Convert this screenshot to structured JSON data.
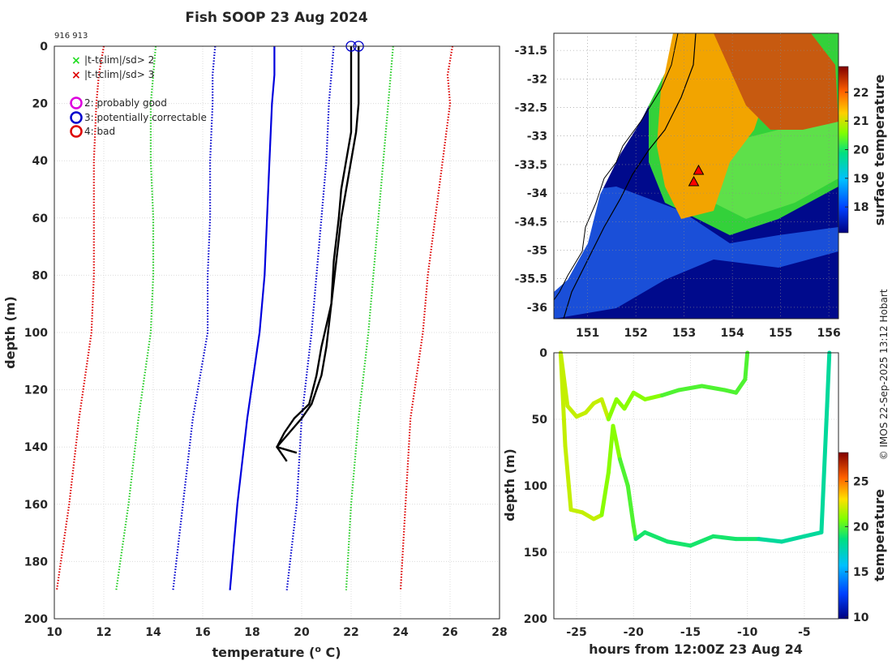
{
  "figure": {
    "title": "Fish SOOP 23 Aug 2024",
    "ids_label": "916 913",
    "credit": "© IMOS 22-Sep-2025 13:12 Hobart"
  },
  "chart_data": [
    {
      "type": "line",
      "name": "temperature-profile",
      "xlabel": "temperature (o C)",
      "ylabel": "depth (m)",
      "xlim": [
        10,
        28
      ],
      "ylim": [
        200,
        0
      ],
      "xticks": [
        10,
        12,
        14,
        16,
        18,
        20,
        22,
        24,
        26,
        28
      ],
      "yticks": [
        0,
        20,
        40,
        60,
        80,
        100,
        120,
        140,
        160,
        180,
        200
      ],
      "grid": true,
      "legend": [
        {
          "symbol": "x",
          "color": "#22dd22",
          "label": "|t-tclim|/sd> 2"
        },
        {
          "symbol": "x",
          "color": "#dd0000",
          "label": "|t-tclim|/sd> 3"
        },
        {
          "symbol": "o",
          "color": "#dd00dd",
          "label": "2: probably good"
        },
        {
          "symbol": "o",
          "color": "#0000cc",
          "label": "3: potentially correctable"
        },
        {
          "symbol": "o",
          "color": "#dd0000",
          "label": "4: bad"
        }
      ],
      "series": [
        {
          "name": "climatology-minus-3sd",
          "color": "#dd0000",
          "style": "dotted",
          "points": [
            [
              12.0,
              0
            ],
            [
              11.8,
              10
            ],
            [
              11.7,
              20
            ],
            [
              11.6,
              40
            ],
            [
              11.6,
              60
            ],
            [
              11.6,
              80
            ],
            [
              11.5,
              100
            ],
            [
              11.0,
              130
            ],
            [
              10.6,
              160
            ],
            [
              10.1,
              190
            ]
          ]
        },
        {
          "name": "climatology-minus-2sd",
          "color": "#22cc22",
          "style": "dotted",
          "points": [
            [
              14.1,
              0
            ],
            [
              14.0,
              10
            ],
            [
              13.9,
              20
            ],
            [
              13.9,
              40
            ],
            [
              14.0,
              60
            ],
            [
              14.0,
              80
            ],
            [
              13.9,
              100
            ],
            [
              13.4,
              130
            ],
            [
              13.0,
              160
            ],
            [
              12.5,
              190
            ]
          ]
        },
        {
          "name": "climatology-mean-minus-1sd",
          "color": "#0000cc",
          "style": "dotted",
          "points": [
            [
              16.5,
              0
            ],
            [
              16.4,
              10
            ],
            [
              16.4,
              20
            ],
            [
              16.3,
              40
            ],
            [
              16.3,
              60
            ],
            [
              16.2,
              80
            ],
            [
              16.2,
              100
            ],
            [
              15.6,
              130
            ],
            [
              15.2,
              160
            ],
            [
              14.8,
              190
            ]
          ]
        },
        {
          "name": "climatology-mean",
          "color": "#0000dd",
          "style": "solid",
          "points": [
            [
              18.9,
              0
            ],
            [
              18.9,
              10
            ],
            [
              18.8,
              20
            ],
            [
              18.7,
              40
            ],
            [
              18.6,
              60
            ],
            [
              18.5,
              80
            ],
            [
              18.3,
              100
            ],
            [
              17.8,
              130
            ],
            [
              17.4,
              160
            ],
            [
              17.1,
              190
            ]
          ]
        },
        {
          "name": "climatology-mean-plus-1sd",
          "color": "#0000cc",
          "style": "dotted",
          "points": [
            [
              21.3,
              0
            ],
            [
              21.2,
              10
            ],
            [
              21.1,
              20
            ],
            [
              21.0,
              40
            ],
            [
              20.8,
              60
            ],
            [
              20.6,
              80
            ],
            [
              20.4,
              100
            ],
            [
              20.0,
              130
            ],
            [
              19.8,
              160
            ],
            [
              19.4,
              190
            ]
          ]
        },
        {
          "name": "climatology-plus-2sd",
          "color": "#22cc22",
          "style": "dotted",
          "points": [
            [
              23.7,
              0
            ],
            [
              23.6,
              10
            ],
            [
              23.5,
              20
            ],
            [
              23.3,
              40
            ],
            [
              23.1,
              60
            ],
            [
              22.9,
              80
            ],
            [
              22.7,
              100
            ],
            [
              22.3,
              130
            ],
            [
              22.0,
              160
            ],
            [
              21.8,
              190
            ]
          ]
        },
        {
          "name": "climatology-plus-3sd",
          "color": "#dd0000",
          "style": "dotted",
          "points": [
            [
              26.1,
              0
            ],
            [
              25.9,
              10
            ],
            [
              26.0,
              20
            ],
            [
              25.7,
              40
            ],
            [
              25.4,
              60
            ],
            [
              25.1,
              80
            ],
            [
              24.9,
              100
            ],
            [
              24.4,
              130
            ],
            [
              24.2,
              160
            ],
            [
              24.0,
              190
            ]
          ]
        },
        {
          "name": "profile-916",
          "color": "#000000",
          "style": "solid",
          "points": [
            [
              22.0,
              0
            ],
            [
              22.0,
              10
            ],
            [
              22.0,
              20
            ],
            [
              22.0,
              30
            ],
            [
              21.8,
              40
            ],
            [
              21.6,
              50
            ],
            [
              21.5,
              60
            ],
            [
              21.3,
              75
            ],
            [
              21.2,
              90
            ],
            [
              20.8,
              105
            ],
            [
              20.6,
              115
            ],
            [
              20.3,
              125
            ],
            [
              19.7,
              130
            ],
            [
              19.3,
              135
            ],
            [
              19.0,
              140
            ],
            [
              19.4,
              145
            ]
          ]
        },
        {
          "name": "profile-913",
          "color": "#000000",
          "style": "solid",
          "points": [
            [
              22.3,
              0
            ],
            [
              22.3,
              10
            ],
            [
              22.3,
              20
            ],
            [
              22.2,
              30
            ],
            [
              22.0,
              40
            ],
            [
              21.8,
              50
            ],
            [
              21.6,
              60
            ],
            [
              21.4,
              75
            ],
            [
              21.2,
              90
            ],
            [
              21.0,
              105
            ],
            [
              20.8,
              115
            ],
            [
              20.4,
              125
            ],
            [
              20.0,
              130
            ],
            [
              19.5,
              135
            ],
            [
              19.0,
              140
            ],
            [
              19.8,
              142
            ]
          ]
        }
      ],
      "markers": [
        {
          "name": "profile-916-start",
          "color": "#0000cc",
          "shape": "circle",
          "x": 22.0,
          "y": 0
        },
        {
          "name": "profile-913-start",
          "color": "#0000cc",
          "shape": "circle",
          "x": 22.3,
          "y": 0
        }
      ]
    },
    {
      "type": "heatmap",
      "name": "sst-map",
      "xlim": [
        150.3,
        156.2
      ],
      "ylim": [
        -36.2,
        -31.2
      ],
      "xticks": [
        151,
        152,
        153,
        154,
        155,
        156
      ],
      "yticks": [
        -31.5,
        -32,
        -32.5,
        -33,
        -33.5,
        -34,
        -34.5,
        -35,
        -35.5,
        -36
      ],
      "colorbar_label": "surface temperature",
      "colorbar_ticks": [
        18,
        19,
        20,
        21,
        22
      ],
      "colorbar_range": [
        17.1,
        22.9
      ],
      "stations": [
        {
          "lon": 153.3,
          "lat": -33.6
        },
        {
          "lon": 153.2,
          "lat": -33.8
        }
      ]
    },
    {
      "type": "line",
      "name": "depth-time",
      "xlabel": "hours from 12:00Z 23 Aug 24",
      "ylabel": "depth (m)",
      "xlim": [
        -27,
        -2
      ],
      "ylim": [
        200,
        0
      ],
      "xticks": [
        -25,
        -20,
        -15,
        -10,
        -5
      ],
      "yticks": [
        0,
        50,
        100,
        150,
        200
      ],
      "colorbar_label": "temperature",
      "colorbar_ticks": [
        10,
        15,
        20,
        25
      ],
      "colorbar_range": [
        9.8,
        28.2
      ],
      "series": [
        {
          "name": "track-916",
          "temps_celsius": [
            22,
            22,
            21,
            20,
            19,
            19,
            18,
            18
          ],
          "points": [
            [
              -26.4,
              0
            ],
            [
              -26,
              70
            ],
            [
              -25.5,
              118
            ],
            [
              -24.5,
              120
            ],
            [
              -23.5,
              125
            ],
            [
              -22.8,
              122
            ],
            [
              -22.2,
              90
            ],
            [
              -21.8,
              55
            ],
            [
              -21.2,
              80
            ],
            [
              -20.5,
              100
            ],
            [
              -20,
              130
            ],
            [
              -19.8,
              140
            ],
            [
              -19,
              135
            ],
            [
              -17,
              142
            ],
            [
              -15,
              145
            ],
            [
              -13,
              138
            ],
            [
              -11,
              140
            ],
            [
              -9,
              140
            ],
            [
              -7,
              142
            ],
            [
              -5,
              138
            ],
            [
              -3.5,
              135
            ],
            [
              -3,
              40
            ],
            [
              -2.8,
              0
            ]
          ]
        },
        {
          "name": "track-913",
          "temps_celsius": [
            22,
            22,
            22,
            21,
            21,
            20,
            20,
            20
          ],
          "points": [
            [
              -26.4,
              0
            ],
            [
              -25.8,
              40
            ],
            [
              -25,
              48
            ],
            [
              -24.2,
              45
            ],
            [
              -23.5,
              38
            ],
            [
              -22.8,
              35
            ],
            [
              -22.2,
              50
            ],
            [
              -21.5,
              35
            ],
            [
              -20.8,
              42
            ],
            [
              -20,
              30
            ],
            [
              -19,
              35
            ],
            [
              -17.5,
              32
            ],
            [
              -16,
              28
            ],
            [
              -14,
              25
            ],
            [
              -12,
              28
            ],
            [
              -11,
              30
            ],
            [
              -10.2,
              20
            ],
            [
              -10,
              0
            ]
          ]
        }
      ]
    }
  ]
}
